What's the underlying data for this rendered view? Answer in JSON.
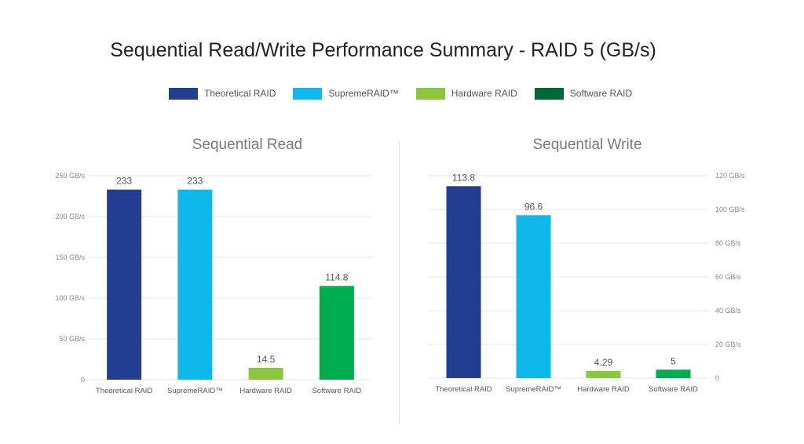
{
  "title": "Sequential Read/Write Performance Summary - RAID 5 (GB/s)",
  "legend": [
    {
      "label": "Theoretical RAID",
      "color": "#233d91"
    },
    {
      "label": "SupremeRAID™",
      "color": "#0fb8eb"
    },
    {
      "label": "Hardware RAID",
      "color": "#8cc63f"
    },
    {
      "label": "Software RAID",
      "color": "#006838"
    }
  ],
  "chart_data": [
    {
      "type": "bar",
      "title": "Sequential Read",
      "categories": [
        "Theoretical RAID",
        "SupremeRAID™",
        "Hardware RAID",
        "Software RAID"
      ],
      "values": [
        233,
        233,
        14.5,
        114.8
      ],
      "value_labels": [
        "233",
        "233",
        "14.5",
        "114.8"
      ],
      "colors": [
        "#233d91",
        "#0fb8eb",
        "#8cc63f",
        "#00ad4e"
      ],
      "ylim": [
        0,
        250
      ],
      "yticks": [
        0,
        50,
        100,
        150,
        200,
        250
      ],
      "ytick_labels": [
        "0",
        "50 GB/s",
        "100 GB/s",
        "150 GB/s",
        "200 GB/s",
        "250 GB/s"
      ],
      "yaxis_side": "left",
      "grid": true
    },
    {
      "type": "bar",
      "title": "Sequential Write",
      "categories": [
        "Theoretical RAID",
        "SupremeRAID™",
        "Hardware RAID",
        "Software RAID"
      ],
      "values": [
        113.8,
        96.6,
        4.29,
        5
      ],
      "value_labels": [
        "113.8",
        "96.6",
        "4.29",
        "5"
      ],
      "colors": [
        "#233d91",
        "#0fb8eb",
        "#8cc63f",
        "#00ad4e"
      ],
      "ylim": [
        0,
        120
      ],
      "yticks": [
        0,
        20,
        40,
        60,
        80,
        100,
        120
      ],
      "ytick_labels": [
        "0",
        "20 GB/s",
        "40 GB/s",
        "60 GB/s",
        "80 GB/s",
        "100 GB/s",
        "120 GB/s"
      ],
      "yaxis_side": "right",
      "grid": true
    }
  ]
}
